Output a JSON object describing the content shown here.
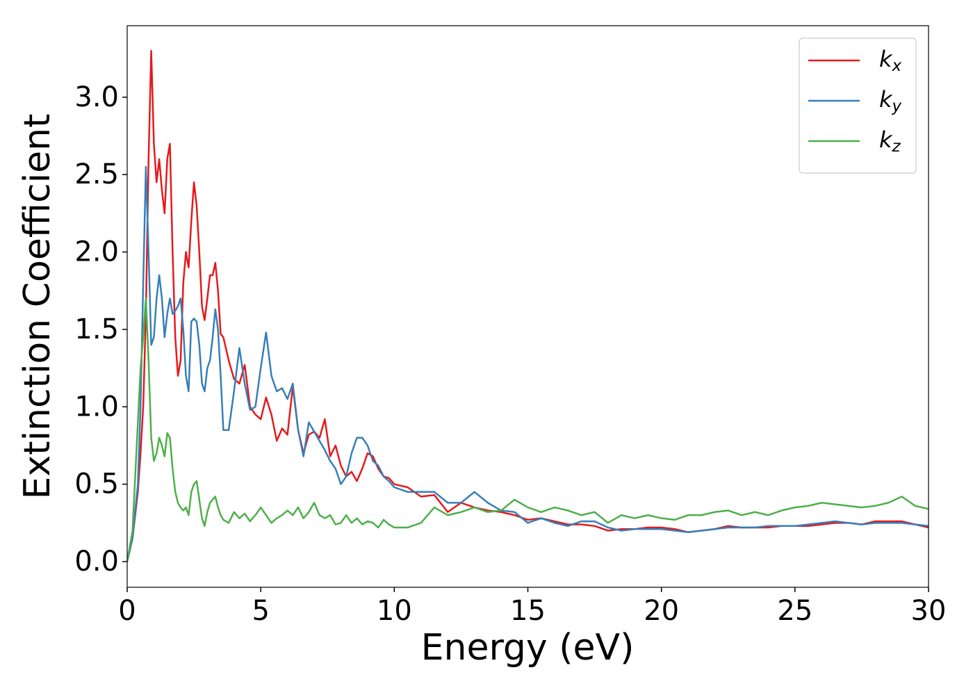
{
  "chart_data": {
    "type": "line",
    "x_label": "Energy (eV)",
    "y_label": "Extinction Coefficient",
    "x": [
      0,
      0.2,
      0.4,
      0.5,
      0.6,
      0.7,
      0.8,
      0.9,
      1.0,
      1.1,
      1.2,
      1.3,
      1.4,
      1.5,
      1.6,
      1.7,
      1.8,
      1.9,
      2.0,
      2.1,
      2.2,
      2.3,
      2.4,
      2.5,
      2.6,
      2.7,
      2.8,
      2.9,
      3.0,
      3.1,
      3.2,
      3.3,
      3.4,
      3.5,
      3.6,
      3.8,
      4.0,
      4.2,
      4.4,
      4.6,
      4.8,
      5.0,
      5.2,
      5.4,
      5.6,
      5.8,
      6.0,
      6.2,
      6.4,
      6.6,
      6.8,
      7.0,
      7.2,
      7.4,
      7.6,
      7.8,
      8.0,
      8.2,
      8.4,
      8.6,
      8.8,
      9.0,
      9.2,
      9.4,
      9.6,
      9.8,
      10.0,
      10.5,
      11,
      11.5,
      12,
      12.5,
      13,
      13.5,
      14,
      14.5,
      15,
      15.5,
      16,
      16.5,
      17,
      17.5,
      18,
      18.5,
      19,
      19.5,
      20,
      20.5,
      21,
      21.5,
      22,
      22.5,
      23,
      23.5,
      24,
      24.5,
      25,
      25.5,
      26,
      26.5,
      27,
      27.5,
      28,
      28.5,
      29,
      29.5,
      30
    ],
    "series": [
      {
        "name": "kx",
        "color": "#e41a1c",
        "values": [
          0,
          0.15,
          0.45,
          0.7,
          1.0,
          1.6,
          2.6,
          3.3,
          2.7,
          2.45,
          2.6,
          2.4,
          2.25,
          2.6,
          2.7,
          2.0,
          1.45,
          1.2,
          1.3,
          1.8,
          2.0,
          1.9,
          2.2,
          2.45,
          2.3,
          2.0,
          1.65,
          1.56,
          1.7,
          1.85,
          1.85,
          1.93,
          1.75,
          1.47,
          1.45,
          1.3,
          1.18,
          1.15,
          1.27,
          1.0,
          0.95,
          0.92,
          1.06,
          0.95,
          0.78,
          0.86,
          0.82,
          1.13,
          0.85,
          0.7,
          0.82,
          0.84,
          0.8,
          0.92,
          0.68,
          0.75,
          0.62,
          0.55,
          0.58,
          0.52,
          0.6,
          0.7,
          0.68,
          0.6,
          0.55,
          0.54,
          0.5,
          0.48,
          0.42,
          0.43,
          0.32,
          0.38,
          0.35,
          0.33,
          0.32,
          0.3,
          0.27,
          0.28,
          0.26,
          0.24,
          0.24,
          0.23,
          0.2,
          0.21,
          0.21,
          0.22,
          0.22,
          0.21,
          0.19,
          0.2,
          0.21,
          0.23,
          0.22,
          0.22,
          0.22,
          0.23,
          0.23,
          0.23,
          0.24,
          0.25,
          0.25,
          0.24,
          0.26,
          0.26,
          0.26,
          0.24,
          0.22
        ]
      },
      {
        "name": "ky",
        "color": "#377eb8",
        "values": [
          0,
          0.15,
          0.5,
          1.0,
          1.8,
          2.55,
          2.0,
          1.4,
          1.45,
          1.7,
          1.85,
          1.7,
          1.45,
          1.6,
          1.7,
          1.6,
          1.62,
          1.65,
          1.7,
          1.5,
          1.2,
          1.1,
          1.55,
          1.57,
          1.55,
          1.4,
          1.15,
          1.1,
          1.25,
          1.3,
          1.45,
          1.63,
          1.5,
          1.2,
          0.85,
          0.85,
          1.1,
          1.38,
          1.15,
          0.98,
          1.0,
          1.25,
          1.48,
          1.2,
          1.1,
          1.12,
          1.05,
          1.15,
          0.85,
          0.68,
          0.9,
          0.84,
          0.78,
          0.72,
          0.65,
          0.6,
          0.5,
          0.55,
          0.7,
          0.8,
          0.8,
          0.75,
          0.65,
          0.62,
          0.55,
          0.52,
          0.48,
          0.45,
          0.45,
          0.45,
          0.38,
          0.38,
          0.45,
          0.38,
          0.33,
          0.32,
          0.25,
          0.28,
          0.25,
          0.23,
          0.26,
          0.26,
          0.22,
          0.2,
          0.21,
          0.21,
          0.21,
          0.2,
          0.19,
          0.2,
          0.21,
          0.22,
          0.22,
          0.22,
          0.23,
          0.23,
          0.23,
          0.24,
          0.25,
          0.26,
          0.25,
          0.24,
          0.25,
          0.25,
          0.25,
          0.24,
          0.23
        ]
      },
      {
        "name": "kz",
        "color": "#4daf4a",
        "values": [
          0,
          0.2,
          0.9,
          1.25,
          1.45,
          1.7,
          1.3,
          0.8,
          0.65,
          0.7,
          0.8,
          0.75,
          0.68,
          0.83,
          0.8,
          0.6,
          0.45,
          0.38,
          0.35,
          0.33,
          0.35,
          0.3,
          0.45,
          0.5,
          0.52,
          0.4,
          0.28,
          0.23,
          0.32,
          0.38,
          0.4,
          0.42,
          0.35,
          0.3,
          0.27,
          0.25,
          0.32,
          0.28,
          0.31,
          0.26,
          0.3,
          0.35,
          0.3,
          0.25,
          0.28,
          0.3,
          0.33,
          0.3,
          0.35,
          0.28,
          0.32,
          0.38,
          0.3,
          0.28,
          0.3,
          0.24,
          0.25,
          0.3,
          0.25,
          0.28,
          0.24,
          0.26,
          0.25,
          0.22,
          0.27,
          0.24,
          0.22,
          0.22,
          0.25,
          0.35,
          0.3,
          0.32,
          0.35,
          0.32,
          0.33,
          0.4,
          0.35,
          0.32,
          0.35,
          0.33,
          0.3,
          0.32,
          0.25,
          0.3,
          0.28,
          0.3,
          0.28,
          0.27,
          0.3,
          0.3,
          0.32,
          0.33,
          0.3,
          0.32,
          0.3,
          0.33,
          0.35,
          0.36,
          0.38,
          0.37,
          0.36,
          0.35,
          0.36,
          0.38,
          0.42,
          0.36,
          0.34
        ]
      }
    ],
    "xlim": [
      0,
      30
    ],
    "ylim": [
      -0.166,
      3.462
    ],
    "xticks": [
      0,
      5,
      10,
      15,
      20,
      25,
      30
    ],
    "yticks": [
      {
        "value": 0,
        "label": "0.0"
      },
      0.5,
      {
        "value": 1,
        "label": "1.0"
      },
      1.5,
      {
        "value": 2,
        "label": "2.0"
      },
      2.5,
      {
        "value": 3,
        "label": "3.0"
      }
    ],
    "grid": false,
    "legend": "upper right"
  }
}
